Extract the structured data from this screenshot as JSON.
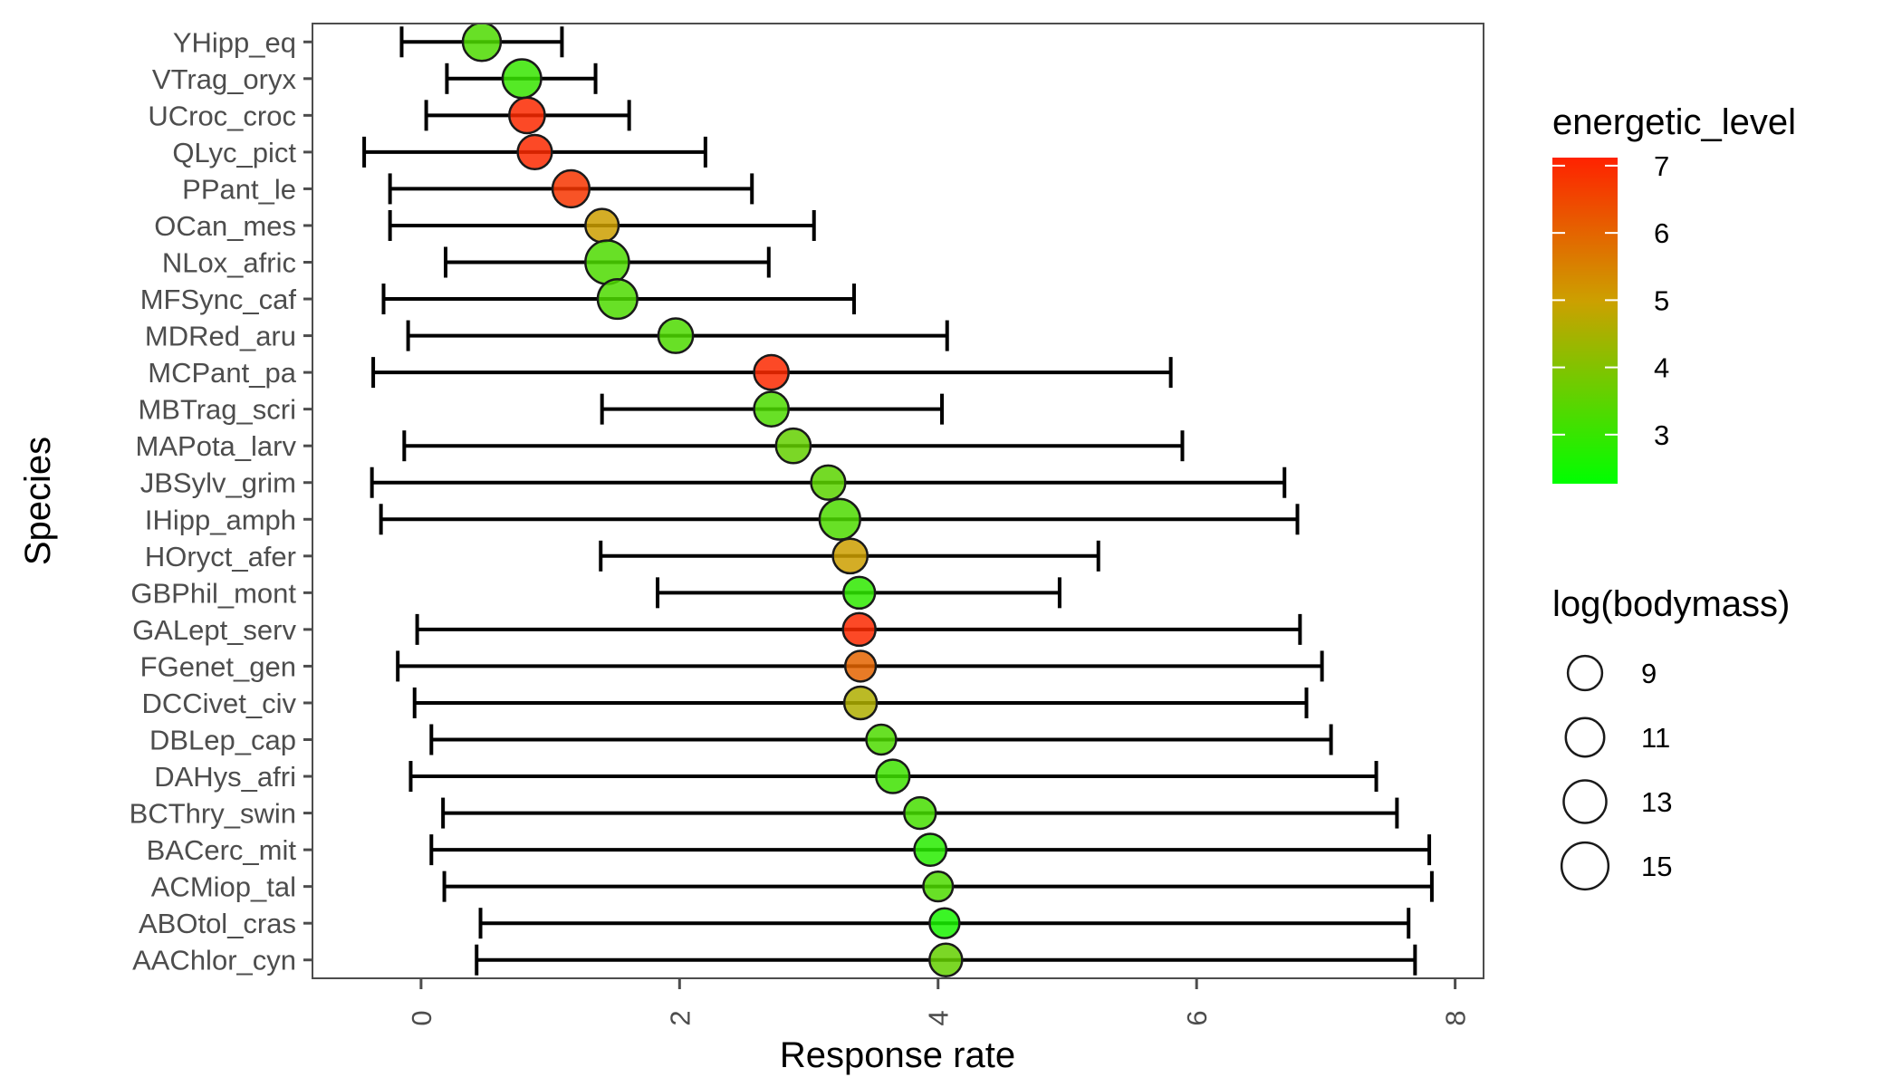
{
  "chart_data": {
    "type": "scatter",
    "subtype": "dot-with-errorbars",
    "title": "",
    "xlabel": "Response rate",
    "ylabel": "Species",
    "xlim": [
      -0.84,
      8.22
    ],
    "xticks": [
      0,
      2,
      4,
      6,
      8
    ],
    "xtick_labels": [
      "0",
      "2",
      "4",
      "6",
      "8"
    ],
    "xtick_rotation": "vertical",
    "grid": false,
    "legend_placement": "right",
    "categories": [
      "YHipp_eq",
      "VTrag_oryx",
      "UCroc_croc",
      "QLyc_pict",
      "PPant_le",
      "OCan_mes",
      "NLox_afric",
      "MFSync_caf",
      "MDRed_aru",
      "MCPant_pa",
      "MBTrag_scri",
      "MAPota_larv",
      "JBSylv_grim",
      "IHipp_amph",
      "HOryct_afer",
      "GBPhil_mont",
      "GALept_serv",
      "FGenet_gen",
      "DCCivet_civ",
      "DBLep_cap",
      "DAHys_afri",
      "BCThry_swin",
      "BACerc_mit",
      "ACMiop_tal",
      "ABOtol_cras",
      "AAChlor_cyn"
    ],
    "points": [
      {
        "species": "YHipp_eq",
        "x": 0.47,
        "lo": -0.15,
        "hi": 1.09,
        "energetic_level": 3.3,
        "log_bodymass": 11.7
      },
      {
        "species": "VTrag_oryx",
        "x": 0.78,
        "lo": 0.2,
        "hi": 1.35,
        "energetic_level": 3.0,
        "log_bodymass": 12.0
      },
      {
        "species": "UCroc_croc",
        "x": 0.82,
        "lo": 0.04,
        "hi": 1.61,
        "energetic_level": 7.0,
        "log_bodymass": 10.5
      },
      {
        "species": "QLyc_pict",
        "x": 0.88,
        "lo": -0.44,
        "hi": 2.2,
        "energetic_level": 7.0,
        "log_bodymass": 9.8
      },
      {
        "species": "PPant_le",
        "x": 1.16,
        "lo": -0.24,
        "hi": 2.56,
        "energetic_level": 6.8,
        "log_bodymass": 11.2
      },
      {
        "species": "OCan_mes",
        "x": 1.4,
        "lo": -0.24,
        "hi": 3.04,
        "energetic_level": 5.0,
        "log_bodymass": 9.3
      },
      {
        "species": "NLox_afric",
        "x": 1.44,
        "lo": 0.19,
        "hi": 2.69,
        "energetic_level": 3.3,
        "log_bodymass": 14.5
      },
      {
        "species": "MFSync_caf",
        "x": 1.52,
        "lo": -0.29,
        "hi": 3.35,
        "energetic_level": 3.3,
        "log_bodymass": 12.5
      },
      {
        "species": "MDRed_aru",
        "x": 1.97,
        "lo": -0.1,
        "hi": 4.07,
        "energetic_level": 3.3,
        "log_bodymass": 10.0
      },
      {
        "species": "MCPant_pa",
        "x": 2.71,
        "lo": -0.37,
        "hi": 5.8,
        "energetic_level": 7.0,
        "log_bodymass": 10.0
      },
      {
        "species": "MBTrag_scri",
        "x": 2.71,
        "lo": 1.4,
        "hi": 4.03,
        "energetic_level": 3.3,
        "log_bodymass": 10.0
      },
      {
        "species": "MAPota_larv",
        "x": 2.88,
        "lo": -0.13,
        "hi": 5.89,
        "energetic_level": 3.6,
        "log_bodymass": 10.0
      },
      {
        "species": "JBSylv_grim",
        "x": 3.15,
        "lo": -0.38,
        "hi": 6.68,
        "energetic_level": 3.5,
        "log_bodymass": 9.8
      },
      {
        "species": "IHipp_amph",
        "x": 3.24,
        "lo": -0.31,
        "hi": 6.78,
        "energetic_level": 3.3,
        "log_bodymass": 13.0
      },
      {
        "species": "HOryct_afer",
        "x": 3.32,
        "lo": 1.39,
        "hi": 5.24,
        "energetic_level": 5.0,
        "log_bodymass": 10.0
      },
      {
        "species": "GBPhil_mont",
        "x": 3.39,
        "lo": 1.83,
        "hi": 4.94,
        "energetic_level": 2.9,
        "log_bodymass": 8.5
      },
      {
        "species": "GALept_serv",
        "x": 3.39,
        "lo": -0.03,
        "hi": 6.8,
        "energetic_level": 7.0,
        "log_bodymass": 9.0
      },
      {
        "species": "FGenet_gen",
        "x": 3.4,
        "lo": -0.18,
        "hi": 6.97,
        "energetic_level": 6.0,
        "log_bodymass": 8.0
      },
      {
        "species": "DCCivet_civ",
        "x": 3.4,
        "lo": -0.05,
        "hi": 6.85,
        "energetic_level": 4.6,
        "log_bodymass": 9.0
      },
      {
        "species": "DBLep_cap",
        "x": 3.56,
        "lo": 0.08,
        "hi": 7.04,
        "energetic_level": 3.3,
        "log_bodymass": 7.6
      },
      {
        "species": "DAHys_afri",
        "x": 3.65,
        "lo": -0.08,
        "hi": 7.39,
        "energetic_level": 3.1,
        "log_bodymass": 9.4
      },
      {
        "species": "BCThry_swin",
        "x": 3.86,
        "lo": 0.17,
        "hi": 7.55,
        "energetic_level": 3.2,
        "log_bodymass": 8.5
      },
      {
        "species": "BACerc_mit",
        "x": 3.94,
        "lo": 0.08,
        "hi": 7.8,
        "energetic_level": 2.8,
        "log_bodymass": 8.7
      },
      {
        "species": "ACMiop_tal",
        "x": 4.0,
        "lo": 0.18,
        "hi": 7.82,
        "energetic_level": 3.3,
        "log_bodymass": 7.5
      },
      {
        "species": "ABOtol_cras",
        "x": 4.05,
        "lo": 0.46,
        "hi": 7.64,
        "energetic_level": 2.6,
        "log_bodymass": 7.6
      },
      {
        "species": "AAChlor_cyn",
        "x": 4.06,
        "lo": 0.43,
        "hi": 7.69,
        "energetic_level": 3.6,
        "log_bodymass": 9.0
      }
    ],
    "color_legend": {
      "title": "energetic_level",
      "range": [
        2.27,
        7.12
      ],
      "ticks": [
        3,
        4,
        5,
        6,
        7
      ],
      "tick_labels": [
        "3",
        "4",
        "5",
        "6",
        "7"
      ],
      "low_color": "#00FF00",
      "mid_color": "#CCA000",
      "high_color": "#FF2200"
    },
    "size_legend": {
      "title": "log(bodymass)",
      "values": [
        9,
        11,
        13,
        15
      ],
      "labels": [
        "9",
        "11",
        "13",
        "15"
      ]
    },
    "style": {
      "point_alpha": 0.85,
      "point_stroke": "#1a1a1a",
      "errorbar_color": "#000000",
      "panel_border": "#4d4d4d",
      "tick_color": "#4d4d4d"
    }
  }
}
